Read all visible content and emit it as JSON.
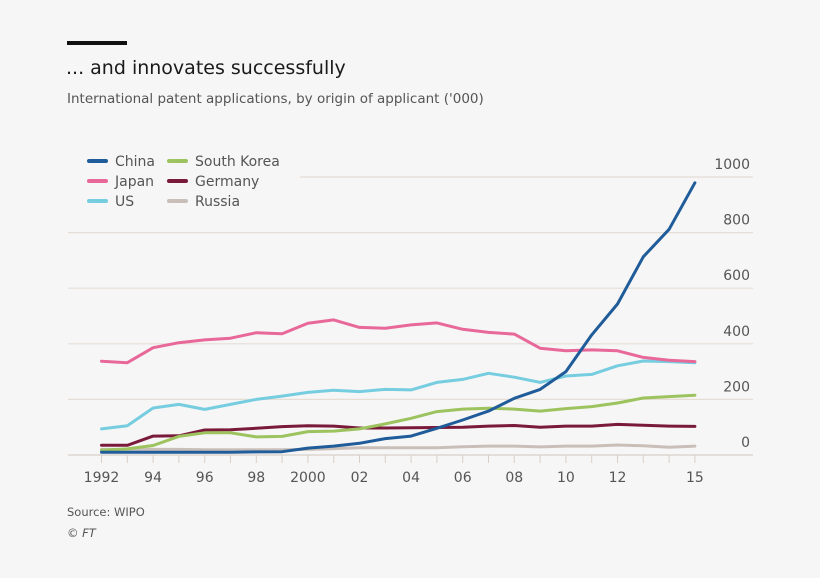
{
  "title": "... and innovates successfully",
  "subtitle": "International patent applications, by origin of applicant ('000)",
  "source": "Source: WIPO",
  "credit": "© FT",
  "chart_data": {
    "type": "line",
    "title": "... and innovates successfully",
    "ylabel": "International patent applications ('000)",
    "x": [
      1992,
      1993,
      1994,
      1995,
      1996,
      1997,
      1998,
      1999,
      2000,
      2001,
      2002,
      2003,
      2004,
      2005,
      2006,
      2007,
      2008,
      2009,
      2010,
      2011,
      2012,
      2013,
      2014,
      2015
    ],
    "x_tick_values": [
      1992,
      1994,
      1996,
      1998,
      2000,
      2002,
      2004,
      2006,
      2008,
      2010,
      2012,
      2015
    ],
    "x_tick_labels": [
      "1992",
      "94",
      "96",
      "98",
      "2000",
      "02",
      "04",
      "06",
      "08",
      "10",
      "12",
      "15"
    ],
    "y_ticks": [
      "0",
      "200",
      "400",
      "600",
      "800",
      "1000"
    ],
    "ylim": [
      0,
      1000
    ],
    "grid": true,
    "legend_position": "top-left",
    "series": [
      {
        "name": "China",
        "color": "#1f5c99",
        "values": [
          10,
          10,
          10,
          10,
          10,
          10,
          11,
          12,
          25,
          32,
          42,
          59,
          68,
          96,
          126,
          158,
          204,
          236,
          300,
          432,
          543,
          713,
          812,
          979
        ]
      },
      {
        "name": "Japan",
        "color": "#e8689a",
        "values": [
          337,
          332,
          386,
          404,
          414,
          420,
          440,
          436,
          474,
          486,
          459,
          456,
          468,
          475,
          452,
          441,
          435,
          384,
          375,
          378,
          375,
          351,
          341,
          336
        ]
      },
      {
        "name": "US",
        "color": "#76cde0",
        "values": [
          94,
          105,
          169,
          182,
          164,
          182,
          200,
          212,
          225,
          233,
          228,
          236,
          234,
          261,
          272,
          294,
          280,
          261,
          284,
          290,
          321,
          338,
          336,
          332
        ]
      },
      {
        "name": "South Korea",
        "color": "#9dc35f",
        "values": [
          17,
          22,
          34,
          67,
          80,
          80,
          65,
          67,
          84,
          86,
          94,
          112,
          132,
          156,
          165,
          168,
          165,
          158,
          167,
          174,
          187,
          205,
          210,
          215
        ]
      },
      {
        "name": "Germany",
        "color": "#7a1a3a",
        "values": [
          35,
          35,
          68,
          69,
          90,
          91,
          96,
          102,
          105,
          104,
          97,
          97,
          98,
          99,
          100,
          104,
          106,
          100,
          104,
          104,
          110,
          107,
          104,
          103
        ]
      },
      {
        "name": "Russia",
        "color": "#c9bfb8",
        "values": [
          20,
          20,
          20,
          20,
          19,
          19,
          19,
          19,
          20,
          23,
          26,
          26,
          26,
          26,
          30,
          32,
          32,
          29,
          32,
          32,
          36,
          33,
          28,
          32
        ]
      }
    ]
  }
}
